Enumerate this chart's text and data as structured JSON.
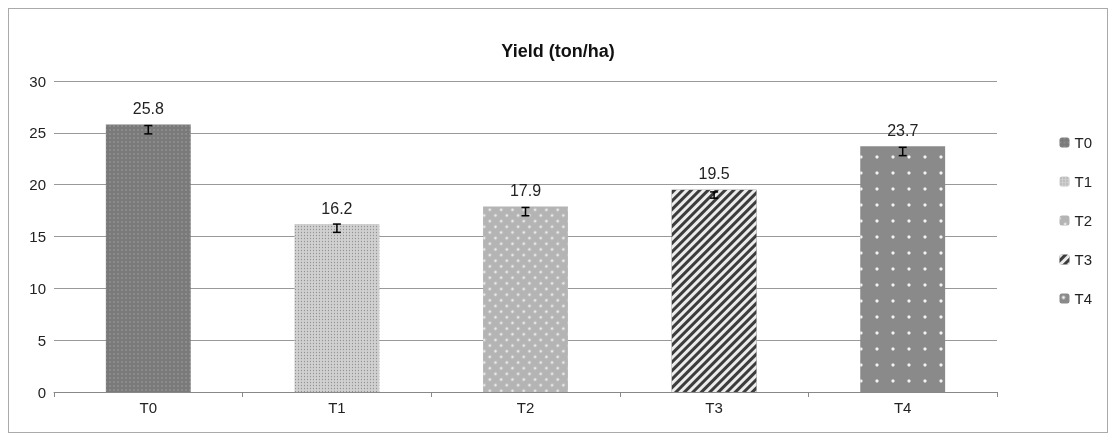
{
  "chart_data": {
    "type": "bar",
    "title": "Yield (ton/ha)",
    "categories": [
      "T0",
      "T1",
      "T2",
      "T3",
      "T4"
    ],
    "series": [
      {
        "name": "T0",
        "color": "#7a7a7a",
        "values": [
          25.8,
          null,
          null,
          null,
          null
        ],
        "errors": [
          [
            24.9,
            25.7
          ],
          null,
          null,
          null,
          null
        ]
      },
      {
        "name": "T1",
        "color": "#d0d0d0",
        "values": [
          null,
          16.2,
          null,
          null,
          null
        ],
        "errors": [
          null,
          [
            15.4,
            16.2
          ],
          null,
          null,
          null
        ]
      },
      {
        "name": "T2",
        "color": "#b4b4b4",
        "values": [
          null,
          null,
          17.9,
          null,
          null
        ],
        "errors": [
          null,
          null,
          [
            17.0,
            17.8
          ],
          null,
          null
        ]
      },
      {
        "name": "T3",
        "color": "#3c3c3c",
        "values": [
          null,
          null,
          null,
          19.5,
          null
        ],
        "errors": [
          null,
          null,
          null,
          [
            18.7,
            19.3
          ],
          null
        ]
      },
      {
        "name": "T4",
        "color": "#8a8a8a",
        "values": [
          null,
          null,
          null,
          null,
          23.7
        ],
        "errors": [
          null,
          null,
          null,
          null,
          [
            22.8,
            23.6
          ]
        ]
      }
    ],
    "stacked": true,
    "data_labels": true,
    "ylim": [
      0,
      30
    ],
    "yticks": [
      0,
      5,
      10,
      15,
      20,
      25,
      30
    ],
    "grid": "y",
    "legend": "right"
  }
}
